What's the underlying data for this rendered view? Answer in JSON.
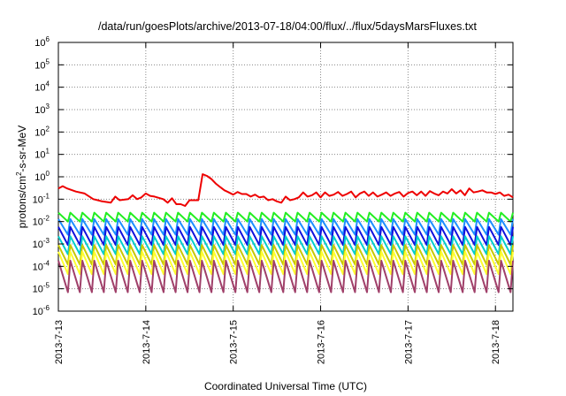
{
  "chart_data": {
    "type": "line",
    "title": "/data/run/goesPlots/archive/2013-07-18/04:00/flux/../flux/5daysMarsFluxes.txt",
    "xlabel": "Coordinated Universal Time (UTC)",
    "ylabel": "protons/cm²-s-sr-MeV",
    "ylabel_parts": {
      "base": "protons/cm",
      "sup": "2",
      "rest": "-s-sr-MeV"
    },
    "yscale": "log",
    "ylim": [
      1e-06,
      1000000.0
    ],
    "y_ticks": [
      {
        "base": "10",
        "exp": "-6",
        "value": 1e-06
      },
      {
        "base": "10",
        "exp": "-5",
        "value": 1e-05
      },
      {
        "base": "10",
        "exp": "-4",
        "value": 0.0001
      },
      {
        "base": "10",
        "exp": "-3",
        "value": 0.001
      },
      {
        "base": "10",
        "exp": "-2",
        "value": 0.01
      },
      {
        "base": "10",
        "exp": "-1",
        "value": 0.1
      },
      {
        "base": "10",
        "exp": "0",
        "value": 1
      },
      {
        "base": "10",
        "exp": "1",
        "value": 10
      },
      {
        "base": "10",
        "exp": "2",
        "value": 100
      },
      {
        "base": "10",
        "exp": "3",
        "value": 1000
      },
      {
        "base": "10",
        "exp": "4",
        "value": 10000
      },
      {
        "base": "10",
        "exp": "5",
        "value": 100000
      },
      {
        "base": "10",
        "exp": "6",
        "value": 1000000
      }
    ],
    "xlim": [
      0,
      5.2
    ],
    "x_tick_labels": [
      "2013-7-13",
      "2013-7-14",
      "2013-7-15",
      "2013-7-16",
      "2013-7-17",
      "2013-7-18"
    ],
    "x_ticks": [
      0,
      1,
      2,
      3,
      4,
      5
    ],
    "grid": true,
    "series": [
      {
        "color": "#ee0000",
        "x": [
          0,
          0.05,
          0.1,
          0.2,
          0.3,
          0.4,
          0.45,
          0.5,
          0.6,
          0.65,
          0.7,
          0.8,
          0.85,
          0.9,
          0.95,
          1.0,
          1.05,
          1.1,
          1.2,
          1.25,
          1.3,
          1.35,
          1.4,
          1.45,
          1.5,
          1.55,
          1.6,
          1.65,
          1.7,
          1.75,
          1.8,
          1.85,
          1.9,
          1.95,
          2.0,
          2.05,
          2.1,
          2.15,
          2.2,
          2.25,
          2.3,
          2.35,
          2.4,
          2.45,
          2.5,
          2.55,
          2.6,
          2.65,
          2.7,
          2.75,
          2.8,
          2.85,
          2.9,
          2.95,
          3.0,
          3.05,
          3.1,
          3.15,
          3.2,
          3.25,
          3.3,
          3.35,
          3.4,
          3.45,
          3.5,
          3.55,
          3.6,
          3.65,
          3.7,
          3.75,
          3.8,
          3.85,
          3.9,
          3.95,
          4.0,
          4.05,
          4.1,
          4.15,
          4.2,
          4.25,
          4.3,
          4.35,
          4.4,
          4.45,
          4.5,
          4.55,
          4.6,
          4.65,
          4.7,
          4.75,
          4.8,
          4.85,
          4.9,
          4.95,
          5.0,
          5.05,
          5.1,
          5.15,
          5.2
        ],
        "y": [
          0.3,
          0.38,
          0.3,
          0.22,
          0.18,
          0.1,
          0.09,
          0.08,
          0.07,
          0.13,
          0.09,
          0.1,
          0.15,
          0.1,
          0.12,
          0.18,
          0.14,
          0.13,
          0.1,
          0.07,
          0.11,
          0.06,
          0.06,
          0.05,
          0.09,
          0.09,
          0.09,
          1.3,
          1.1,
          0.8,
          0.5,
          0.35,
          0.25,
          0.2,
          0.16,
          0.21,
          0.17,
          0.17,
          0.13,
          0.16,
          0.12,
          0.13,
          0.09,
          0.1,
          0.08,
          0.07,
          0.13,
          0.09,
          0.1,
          0.12,
          0.2,
          0.13,
          0.15,
          0.2,
          0.12,
          0.2,
          0.14,
          0.16,
          0.21,
          0.14,
          0.17,
          0.22,
          0.12,
          0.18,
          0.22,
          0.14,
          0.2,
          0.13,
          0.16,
          0.2,
          0.14,
          0.18,
          0.21,
          0.13,
          0.19,
          0.22,
          0.15,
          0.22,
          0.14,
          0.23,
          0.18,
          0.15,
          0.22,
          0.18,
          0.28,
          0.18,
          0.25,
          0.15,
          0.3,
          0.2,
          0.22,
          0.25,
          0.2,
          0.2,
          0.17,
          0.2,
          0.14,
          0.16,
          0.12
        ]
      },
      {
        "color": "#22ee22",
        "peak": 0.025,
        "trough": 0.01,
        "count": 38
      },
      {
        "color": "#1e8fff",
        "peak": 0.013,
        "trough": 0.0026,
        "count": 38
      },
      {
        "color": "#1010dd",
        "peak": 0.0058,
        "trough": 0.0009,
        "count": 38
      },
      {
        "color": "#00cdcd",
        "peak": 0.0022,
        "trough": 0.00035,
        "count": 38
      },
      {
        "color": "#c8c800",
        "peak": 0.0009,
        "trough": 0.00012,
        "count": 38
      },
      {
        "color": "#ffff30",
        "peak": 0.00045,
        "trough": 4.5e-05,
        "count": 38
      },
      {
        "color": "#a0406a",
        "peak": 0.00018,
        "trough": 7e-06,
        "count": 38
      }
    ]
  }
}
